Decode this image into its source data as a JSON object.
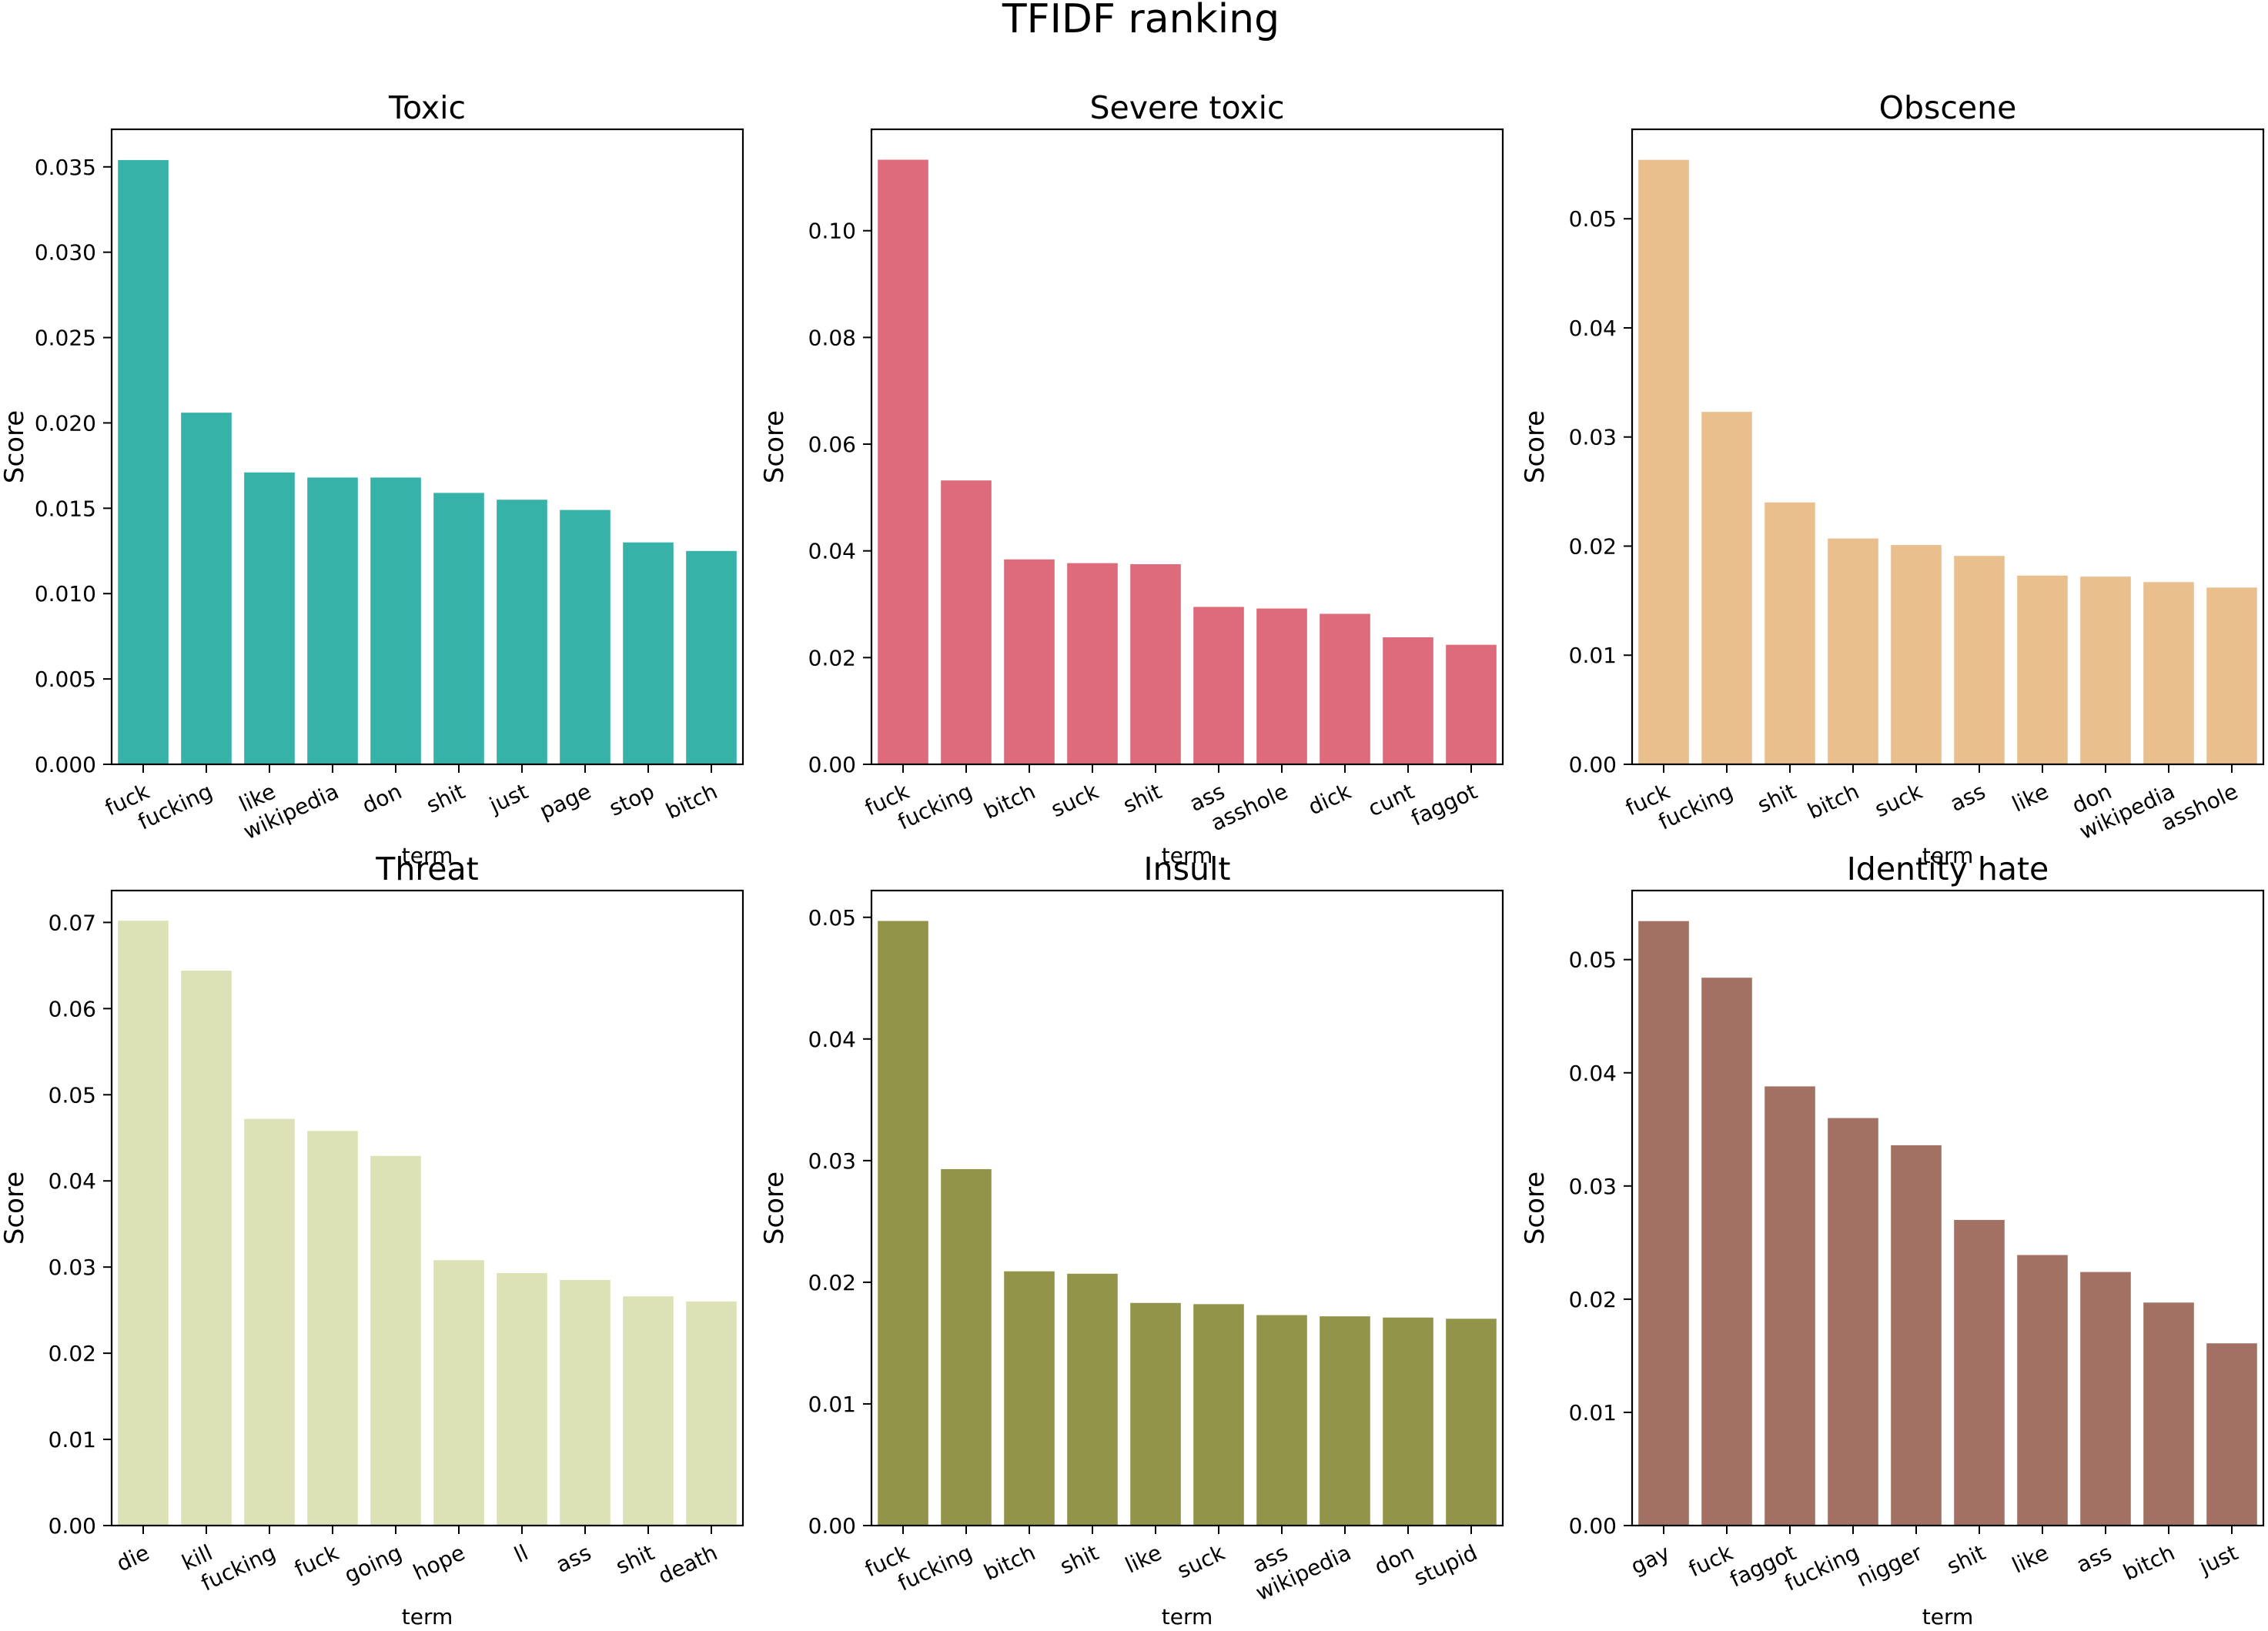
{
  "figure": {
    "suptitle": "TFIDF ranking"
  },
  "chart_data": [
    {
      "type": "bar",
      "title": "Toxic",
      "xlabel": "term",
      "ylabel": "Score",
      "color": "#37b2a8",
      "categories": [
        "fuck",
        "fucking",
        "like",
        "wikipedia",
        "don",
        "shit",
        "just",
        "page",
        "stop",
        "bitch"
      ],
      "values": [
        0.0354,
        0.0206,
        0.0171,
        0.0168,
        0.0168,
        0.0159,
        0.0155,
        0.0149,
        0.013,
        0.0125
      ],
      "ylim": [
        0,
        0.0372
      ],
      "yticks": [
        0.0,
        0.005,
        0.01,
        0.015,
        0.02,
        0.025,
        0.03,
        0.035
      ],
      "ytick_labels": [
        "0.000",
        "0.005",
        "0.010",
        "0.015",
        "0.020",
        "0.025",
        "0.030",
        "0.035"
      ]
    },
    {
      "type": "bar",
      "title": "Severe toxic",
      "xlabel": "term",
      "ylabel": "Score",
      "color": "#dd6b7b",
      "categories": [
        "fuck",
        "fucking",
        "bitch",
        "suck",
        "shit",
        "ass",
        "asshole",
        "dick",
        "cunt",
        "faggot"
      ],
      "values": [
        0.1133,
        0.0532,
        0.0384,
        0.0377,
        0.0375,
        0.0295,
        0.0292,
        0.0282,
        0.0238,
        0.0224
      ],
      "ylim": [
        0,
        0.119
      ],
      "yticks": [
        0.0,
        0.02,
        0.04,
        0.06,
        0.08,
        0.1
      ],
      "ytick_labels": [
        "0.00",
        "0.02",
        "0.04",
        "0.06",
        "0.08",
        "0.10"
      ]
    },
    {
      "type": "bar",
      "title": "Obscene",
      "xlabel": "term",
      "ylabel": "Score",
      "color": "#e9bf8d",
      "categories": [
        "fuck",
        "fucking",
        "shit",
        "bitch",
        "suck",
        "ass",
        "like",
        "don",
        "wikipedia",
        "asshole"
      ],
      "values": [
        0.0554,
        0.0323,
        0.024,
        0.0207,
        0.0201,
        0.0191,
        0.0173,
        0.0172,
        0.0167,
        0.0162
      ],
      "ylim": [
        0,
        0.0582
      ],
      "yticks": [
        0.0,
        0.01,
        0.02,
        0.03,
        0.04,
        0.05
      ],
      "ytick_labels": [
        "0.00",
        "0.01",
        "0.02",
        "0.03",
        "0.04",
        "0.05"
      ]
    },
    {
      "type": "bar",
      "title": "Threat",
      "xlabel": "term",
      "ylabel": "Score",
      "color": "#dce1b6",
      "categories": [
        "die",
        "kill",
        "fucking",
        "fuck",
        "going",
        "hope",
        "ll",
        "ass",
        "shit",
        "death"
      ],
      "values": [
        0.0702,
        0.0644,
        0.0472,
        0.0458,
        0.0429,
        0.0308,
        0.0293,
        0.0285,
        0.0266,
        0.026
      ],
      "ylim": [
        0,
        0.0737
      ],
      "yticks": [
        0.0,
        0.01,
        0.02,
        0.03,
        0.04,
        0.05,
        0.06,
        0.07
      ],
      "ytick_labels": [
        "0.00",
        "0.01",
        "0.02",
        "0.03",
        "0.04",
        "0.05",
        "0.06",
        "0.07"
      ]
    },
    {
      "type": "bar",
      "title": "Insult",
      "xlabel": "term",
      "ylabel": "Score",
      "color": "#929449",
      "categories": [
        "fuck",
        "fucking",
        "bitch",
        "shit",
        "like",
        "suck",
        "ass",
        "wikipedia",
        "don",
        "stupid"
      ],
      "values": [
        0.0497,
        0.0293,
        0.0209,
        0.0207,
        0.0183,
        0.0182,
        0.0173,
        0.0172,
        0.0171,
        0.017
      ],
      "ylim": [
        0,
        0.0522
      ],
      "yticks": [
        0.0,
        0.01,
        0.02,
        0.03,
        0.04,
        0.05
      ],
      "ytick_labels": [
        "0.00",
        "0.01",
        "0.02",
        "0.03",
        "0.04",
        "0.05"
      ]
    },
    {
      "type": "bar",
      "title": "Identity hate",
      "xlabel": "term",
      "ylabel": "Score",
      "color": "#a37163",
      "categories": [
        "gay",
        "fuck",
        "faggot",
        "fucking",
        "nigger",
        "shit",
        "like",
        "ass",
        "bitch",
        "just"
      ],
      "values": [
        0.0534,
        0.0484,
        0.0388,
        0.036,
        0.0336,
        0.027,
        0.0239,
        0.0224,
        0.0197,
        0.0161
      ],
      "ylim": [
        0,
        0.0561
      ],
      "yticks": [
        0.0,
        0.01,
        0.02,
        0.03,
        0.04,
        0.05
      ],
      "ytick_labels": [
        "0.00",
        "0.01",
        "0.02",
        "0.03",
        "0.04",
        "0.05"
      ]
    }
  ]
}
